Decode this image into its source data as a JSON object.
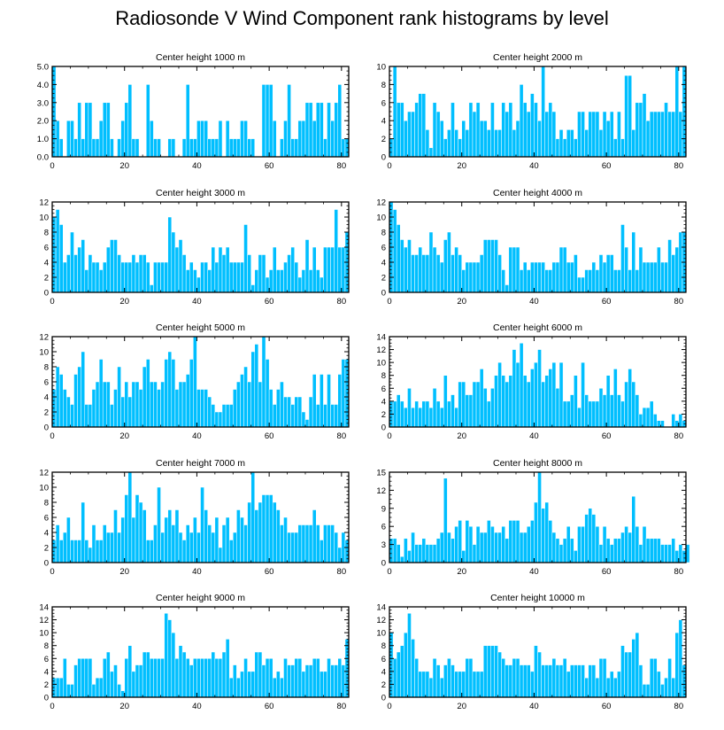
{
  "title": "Radiosonde V Wind Component rank histograms by level",
  "colors": {
    "bar_fill": "#00BFFF",
    "bar_edge": "#ffffff",
    "axis": "#000000"
  },
  "chart_data": [
    {
      "type": "bar",
      "title": "Center height 1000 m",
      "xlim": [
        0,
        82
      ],
      "xticks": [
        0,
        20,
        40,
        60,
        80
      ],
      "ylim": [
        0,
        5
      ],
      "yticks": [
        0,
        1,
        2,
        3,
        4,
        5
      ],
      "ytick_labels": [
        "0.0",
        "1.0",
        "2.0",
        "3.0",
        "4.0",
        "5.0"
      ],
      "values": [
        5,
        2,
        1,
        0,
        2,
        2,
        1,
        3,
        1,
        3,
        3,
        1,
        1,
        2,
        3,
        3,
        1,
        0,
        1,
        2,
        3,
        4,
        1,
        1,
        0,
        0,
        4,
        2,
        1,
        1,
        0,
        0,
        1,
        1,
        0,
        0,
        1,
        4,
        1,
        1,
        2,
        2,
        2,
        1,
        1,
        1,
        2,
        0,
        2,
        1,
        1,
        1,
        2,
        2,
        1,
        1,
        0,
        0,
        4,
        4,
        4,
        2,
        0,
        1,
        2,
        4,
        1,
        1,
        2,
        2,
        3,
        3,
        2,
        3,
        3,
        1,
        3,
        2,
        3,
        4,
        1,
        1
      ]
    },
    {
      "type": "bar",
      "title": "Center height 2000 m",
      "xlim": [
        0,
        82
      ],
      "xticks": [
        0,
        20,
        40,
        60,
        80
      ],
      "ylim": [
        0,
        10
      ],
      "yticks": [
        0,
        2,
        4,
        6,
        8,
        10
      ],
      "ytick_labels": [
        "0",
        "2",
        "4",
        "6",
        "8",
        "10"
      ],
      "values": [
        2,
        10,
        6,
        6,
        4,
        5,
        5,
        6,
        7,
        7,
        3,
        1,
        6,
        5,
        4,
        2,
        3,
        6,
        3,
        2,
        4,
        3,
        6,
        5,
        6,
        4,
        4,
        3,
        6,
        3,
        3,
        6,
        5,
        6,
        3,
        4,
        8,
        6,
        5,
        7,
        6,
        4,
        10,
        5,
        6,
        5,
        2,
        3,
        2,
        3,
        3,
        2,
        5,
        5,
        3,
        5,
        5,
        5,
        3,
        5,
        4,
        5,
        2,
        5,
        2,
        9,
        9,
        3,
        6,
        6,
        7,
        4,
        5,
        5,
        5,
        5,
        6,
        5,
        5,
        10,
        5,
        10
      ]
    },
    {
      "type": "bar",
      "title": "Center height 3000 m",
      "xlim": [
        0,
        82
      ],
      "xticks": [
        0,
        20,
        40,
        60,
        80
      ],
      "ylim": [
        0,
        12
      ],
      "yticks": [
        0,
        2,
        4,
        6,
        8,
        10,
        12
      ],
      "ytick_labels": [
        "0",
        "2",
        "4",
        "6",
        "8",
        "10",
        "12"
      ],
      "values": [
        10,
        11,
        9,
        4,
        5,
        8,
        5,
        6,
        7,
        3,
        5,
        4,
        4,
        3,
        4,
        6,
        7,
        7,
        5,
        4,
        4,
        4,
        5,
        4,
        5,
        5,
        4,
        1,
        4,
        4,
        4,
        4,
        10,
        8,
        6,
        7,
        5,
        3,
        4,
        3,
        2,
        4,
        4,
        3,
        6,
        4,
        6,
        5,
        6,
        4,
        4,
        4,
        4,
        9,
        5,
        1,
        3,
        5,
        5,
        2,
        3,
        6,
        3,
        3,
        4,
        5,
        6,
        4,
        2,
        3,
        7,
        3,
        6,
        3,
        2,
        6,
        6,
        6,
        11,
        6,
        6,
        8
      ]
    },
    {
      "type": "bar",
      "title": "Center height 4000 m",
      "xlim": [
        0,
        82
      ],
      "xticks": [
        0,
        20,
        40,
        60,
        80
      ],
      "ylim": [
        0,
        12
      ],
      "yticks": [
        0,
        2,
        4,
        6,
        8,
        10,
        12
      ],
      "ytick_labels": [
        "0",
        "2",
        "4",
        "6",
        "8",
        "10",
        "12"
      ],
      "values": [
        12,
        11,
        9,
        7,
        6,
        7,
        5,
        5,
        6,
        5,
        5,
        8,
        6,
        5,
        4,
        7,
        8,
        5,
        6,
        5,
        3,
        4,
        4,
        4,
        4,
        5,
        7,
        7,
        7,
        7,
        5,
        3,
        1,
        6,
        6,
        6,
        3,
        4,
        3,
        4,
        4,
        4,
        4,
        3,
        3,
        4,
        4,
        6,
        6,
        4,
        4,
        5,
        2,
        2,
        3,
        3,
        4,
        3,
        5,
        4,
        5,
        5,
        3,
        3,
        9,
        6,
        3,
        8,
        3,
        6,
        4,
        4,
        4,
        4,
        6,
        4,
        4,
        7,
        5,
        6,
        8,
        8
      ]
    },
    {
      "type": "bar",
      "title": "Center height 5000 m",
      "xlim": [
        0,
        82
      ],
      "xticks": [
        0,
        20,
        40,
        60,
        80
      ],
      "ylim": [
        0,
        12
      ],
      "yticks": [
        0,
        2,
        4,
        6,
        8,
        10,
        12
      ],
      "ytick_labels": [
        "0",
        "2",
        "4",
        "6",
        "8",
        "10",
        "12"
      ],
      "values": [
        5,
        8,
        7,
        5,
        4,
        3,
        7,
        8,
        10,
        3,
        3,
        5,
        6,
        9,
        6,
        6,
        3,
        5,
        8,
        4,
        6,
        4,
        6,
        6,
        5,
        8,
        9,
        6,
        6,
        5,
        6,
        9,
        10,
        9,
        5,
        6,
        6,
        7,
        9,
        12,
        5,
        5,
        5,
        4,
        3,
        2,
        2,
        3,
        3,
        3,
        5,
        6,
        7,
        8,
        6,
        10,
        11,
        6,
        12,
        9,
        5,
        3,
        5,
        6,
        4,
        4,
        3,
        4,
        4,
        2,
        1,
        4,
        7,
        3,
        7,
        3,
        7,
        3,
        3,
        7,
        9,
        9
      ]
    },
    {
      "type": "bar",
      "title": "Center height 6000 m",
      "xlim": [
        0,
        82
      ],
      "xticks": [
        0,
        20,
        40,
        60,
        80
      ],
      "ylim": [
        0,
        14
      ],
      "yticks": [
        0,
        2,
        4,
        6,
        8,
        10,
        12,
        14
      ],
      "ytick_labels": [
        "0",
        "2",
        "4",
        "6",
        "8",
        "10",
        "12",
        "14"
      ],
      "values": [
        4,
        4,
        5,
        4,
        3,
        6,
        3,
        4,
        3,
        4,
        4,
        3,
        6,
        4,
        3,
        8,
        4,
        5,
        3,
        7,
        7,
        5,
        5,
        7,
        7,
        9,
        6,
        4,
        6,
        8,
        10,
        8,
        7,
        8,
        12,
        10,
        13,
        8,
        7,
        9,
        10,
        12,
        7,
        8,
        9,
        10,
        6,
        10,
        4,
        4,
        5,
        8,
        3,
        10,
        5,
        4,
        4,
        4,
        6,
        5,
        8,
        5,
        9,
        5,
        4,
        7,
        9,
        7,
        5,
        2,
        3,
        3,
        4,
        2,
        1,
        1,
        0,
        0,
        2,
        1,
        2,
        1
      ]
    },
    {
      "type": "bar",
      "title": "Center height 7000 m",
      "xlim": [
        0,
        82
      ],
      "xticks": [
        0,
        20,
        40,
        60,
        80
      ],
      "ylim": [
        0,
        12
      ],
      "yticks": [
        0,
        2,
        4,
        6,
        8,
        10,
        12
      ],
      "ytick_labels": [
        "0",
        "2",
        "4",
        "6",
        "8",
        "10",
        "12"
      ],
      "values": [
        3,
        5,
        3,
        4,
        6,
        3,
        3,
        3,
        8,
        3,
        2,
        5,
        3,
        3,
        5,
        4,
        4,
        7,
        4,
        6,
        9,
        12,
        6,
        9,
        8,
        7,
        3,
        3,
        5,
        10,
        4,
        6,
        7,
        5,
        7,
        4,
        3,
        5,
        4,
        6,
        4,
        10,
        7,
        5,
        4,
        6,
        2,
        5,
        6,
        3,
        4,
        7,
        6,
        5,
        8,
        12,
        7,
        8,
        9,
        9,
        9,
        8,
        7,
        5,
        6,
        4,
        4,
        4,
        5,
        5,
        5,
        5,
        7,
        5,
        3,
        5,
        5,
        5,
        4,
        2,
        4,
        3
      ]
    },
    {
      "type": "bar",
      "title": "Center height 8000 m",
      "xlim": [
        0,
        82
      ],
      "xticks": [
        0,
        20,
        40,
        60,
        80
      ],
      "ylim": [
        0,
        15
      ],
      "yticks": [
        0,
        3,
        6,
        9,
        12,
        15
      ],
      "ytick_labels": [
        "0",
        "3",
        "6",
        "9",
        "12",
        "15"
      ],
      "values": [
        4,
        4,
        3,
        1,
        4,
        2,
        5,
        3,
        3,
        4,
        3,
        3,
        3,
        4,
        5,
        14,
        5,
        4,
        6,
        7,
        2,
        7,
        6,
        3,
        6,
        5,
        5,
        7,
        6,
        5,
        5,
        6,
        4,
        7,
        7,
        7,
        5,
        5,
        6,
        7,
        10,
        15,
        9,
        10,
        7,
        5,
        4,
        3,
        4,
        6,
        4,
        2,
        6,
        6,
        8,
        9,
        8,
        6,
        3,
        6,
        4,
        3,
        4,
        4,
        5,
        6,
        5,
        11,
        6,
        3,
        6,
        4,
        4,
        4,
        4,
        3,
        3,
        3,
        4,
        2,
        3,
        2,
        3
      ]
    },
    {
      "type": "bar",
      "title": "Center height 9000 m",
      "xlim": [
        0,
        82
      ],
      "xticks": [
        0,
        20,
        40,
        60,
        80
      ],
      "ylim": [
        0,
        14
      ],
      "yticks": [
        0,
        2,
        4,
        6,
        8,
        10,
        12,
        14
      ],
      "ytick_labels": [
        "0",
        "2",
        "4",
        "6",
        "8",
        "10",
        "12",
        "14"
      ],
      "values": [
        3,
        3,
        3,
        6,
        2,
        2,
        5,
        6,
        6,
        6,
        6,
        2,
        3,
        3,
        6,
        7,
        4,
        5,
        2,
        1,
        6,
        8,
        4,
        5,
        5,
        7,
        7,
        6,
        6,
        6,
        6,
        13,
        12,
        10,
        6,
        8,
        7,
        6,
        5,
        6,
        6,
        6,
        6,
        6,
        7,
        6,
        6,
        7,
        9,
        3,
        5,
        3,
        4,
        6,
        4,
        4,
        7,
        7,
        5,
        6,
        6,
        3,
        4,
        3,
        6,
        5,
        5,
        6,
        6,
        4,
        5,
        5,
        6,
        6,
        4,
        4,
        6,
        5,
        5,
        6,
        5,
        9
      ]
    },
    {
      "type": "bar",
      "title": "Center height 10000 m",
      "xlim": [
        0,
        82
      ],
      "xticks": [
        0,
        20,
        40,
        60,
        80
      ],
      "ylim": [
        0,
        14
      ],
      "yticks": [
        0,
        2,
        4,
        6,
        8,
        10,
        12,
        14
      ],
      "ytick_labels": [
        "0",
        "2",
        "4",
        "6",
        "8",
        "10",
        "12",
        "14"
      ],
      "values": [
        10,
        6,
        7,
        8,
        10,
        13,
        9,
        6,
        4,
        4,
        4,
        3,
        6,
        5,
        3,
        5,
        6,
        5,
        4,
        4,
        4,
        6,
        6,
        4,
        4,
        4,
        8,
        8,
        8,
        8,
        7,
        6,
        5,
        5,
        6,
        6,
        5,
        5,
        5,
        4,
        8,
        7,
        5,
        5,
        5,
        6,
        5,
        5,
        6,
        4,
        5,
        5,
        5,
        5,
        3,
        5,
        5,
        3,
        6,
        6,
        3,
        4,
        3,
        4,
        8,
        7,
        7,
        9,
        10,
        5,
        2,
        2,
        6,
        6,
        4,
        2,
        3,
        6,
        3,
        10,
        12,
        5
      ]
    }
  ]
}
